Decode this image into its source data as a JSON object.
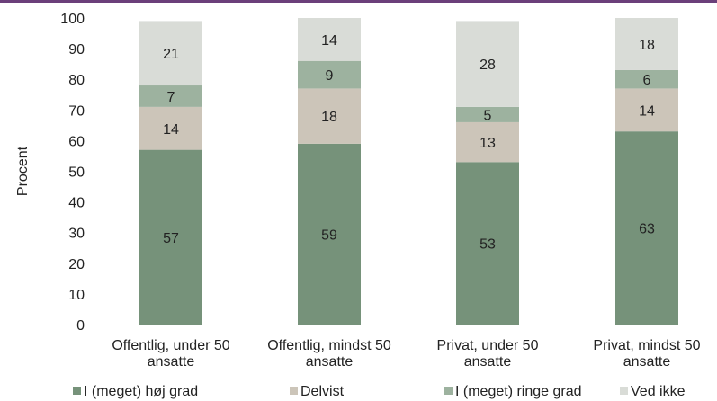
{
  "chart_data": {
    "type": "bar",
    "stacked": true,
    "title": "",
    "xlabel": "",
    "ylabel": "Procent",
    "ylim": [
      0,
      100
    ],
    "yticks": [
      0,
      10,
      20,
      30,
      40,
      50,
      60,
      70,
      80,
      90,
      100
    ],
    "grid": false,
    "legend_position": "bottom",
    "categories": [
      [
        "Offentlig, under 50",
        "ansatte"
      ],
      [
        "Offentlig, mindst 50",
        "ansatte"
      ],
      [
        "Privat, under 50",
        "ansatte"
      ],
      [
        "Privat, mindst 50",
        "ansatte"
      ]
    ],
    "series": [
      {
        "name": "I (meget) høj grad",
        "color": "#76927a",
        "values": [
          57,
          59,
          53,
          63
        ]
      },
      {
        "name": "Delvist",
        "color": "#ccc5b9",
        "values": [
          14,
          18,
          13,
          14
        ]
      },
      {
        "name": "I (meget) ringe grad",
        "color": "#9db29f",
        "values": [
          7,
          9,
          5,
          6
        ]
      },
      {
        "name": "Ved ikke",
        "color": "#d9dcd7",
        "values": [
          21,
          14,
          28,
          18
        ]
      }
    ],
    "top_rule_color": "#6b3f7a"
  }
}
